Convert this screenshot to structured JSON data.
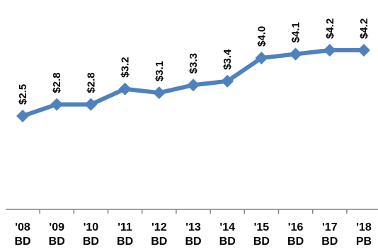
{
  "chart_data": {
    "type": "line",
    "title": "",
    "xlabel": "",
    "ylabel": "",
    "categories": [
      [
        "'08",
        "BD"
      ],
      [
        "'09",
        "BD"
      ],
      [
        "'10",
        "BD"
      ],
      [
        "'11",
        "BD"
      ],
      [
        "'12",
        "BD"
      ],
      [
        "'13",
        "BD"
      ],
      [
        "'14",
        "BD"
      ],
      [
        "'15",
        "BD"
      ],
      [
        "'16",
        "BD"
      ],
      [
        "'17",
        "BD"
      ],
      [
        "'18",
        "PB"
      ]
    ],
    "values": [
      2.5,
      2.8,
      2.8,
      3.2,
      3.1,
      3.3,
      3.4,
      4.0,
      4.1,
      4.2,
      4.2
    ],
    "data_labels": [
      "$2.5",
      "$2.8",
      "$2.8",
      "$3.2",
      "$3.1",
      "$3.3",
      "$3.4",
      "$4.0",
      "$4.1",
      "$4.2",
      "$4.2"
    ],
    "ylim": [
      0,
      5
    ],
    "grid": false,
    "legend": "none",
    "line_color": "#4F81BD",
    "axis_color": "#808080"
  }
}
